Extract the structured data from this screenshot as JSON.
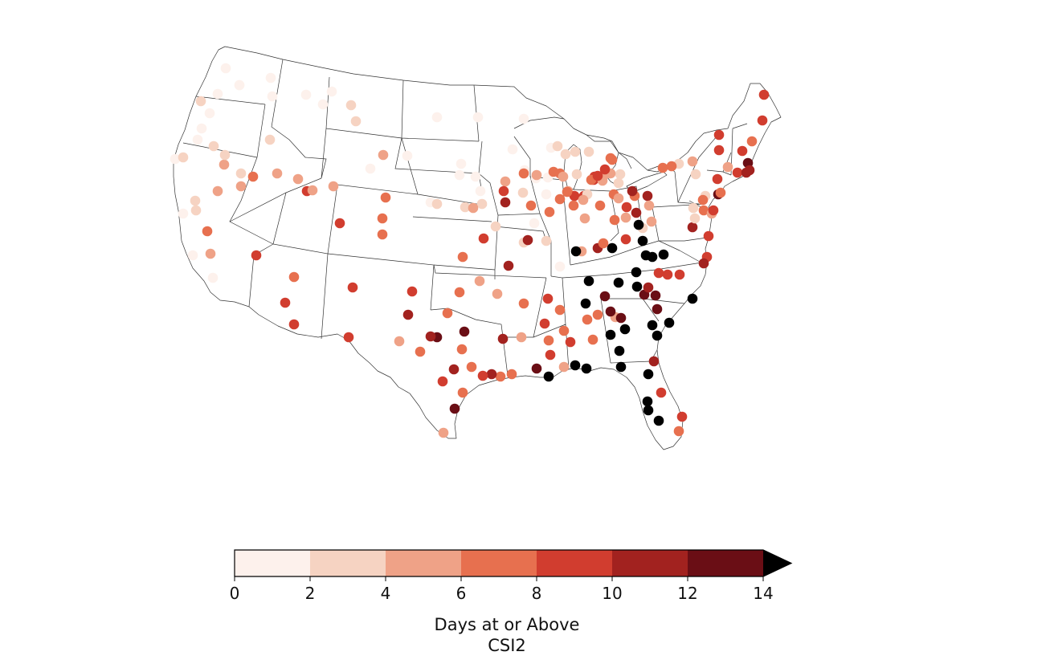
{
  "colorbar": {
    "label_line1": "Days at or Above",
    "label_line2": "CSI2",
    "ticks": [
      "0",
      "2",
      "4",
      "6",
      "8",
      "10",
      "12",
      "14"
    ],
    "bins": [
      {
        "min": 0,
        "max": 2,
        "color": "#fdf1ec"
      },
      {
        "min": 2,
        "max": 4,
        "color": "#f6d3c2"
      },
      {
        "min": 4,
        "max": 6,
        "color": "#efa287"
      },
      {
        "min": 6,
        "max": 8,
        "color": "#e7704f"
      },
      {
        "min": 8,
        "max": 10,
        "color": "#d13d2f"
      },
      {
        "min": 10,
        "max": 12,
        "color": "#a2221f"
      },
      {
        "min": 12,
        "max": 14,
        "color": "#6a0e15"
      }
    ],
    "over_color": "#000000"
  },
  "stations": {
    "description_of_value": "days",
    "over_bin": 7,
    "bins_per_station": [
      0,
      0,
      0,
      0,
      0,
      0,
      0,
      0,
      0,
      1,
      0,
      0,
      1,
      0,
      0,
      0,
      0,
      0,
      0,
      0,
      0,
      0,
      0,
      0,
      0,
      1,
      0,
      0,
      0,
      0,
      1,
      1,
      0,
      0,
      1,
      0,
      1,
      1,
      0,
      0,
      2,
      1,
      1,
      3,
      0,
      0,
      1,
      2,
      3,
      2,
      3,
      1,
      1,
      2,
      3,
      1,
      2,
      4,
      4,
      4,
      4,
      3,
      3,
      1,
      2,
      3,
      1,
      3,
      2,
      4,
      5,
      3,
      2,
      5,
      5,
      2,
      2,
      1,
      7,
      7,
      4,
      7,
      7,
      5,
      2,
      7,
      7,
      7,
      7,
      6,
      7,
      7,
      7,
      7,
      7,
      7,
      7,
      7,
      3,
      2,
      2,
      4,
      4,
      3,
      3,
      3,
      4,
      2,
      3,
      4,
      4,
      4,
      4,
      2,
      3,
      4,
      3,
      6,
      2,
      3,
      3,
      5,
      4,
      5,
      3,
      3,
      6,
      6,
      5,
      5,
      4,
      3,
      3,
      2,
      2,
      3,
      6,
      4,
      3,
      4,
      3,
      4,
      5,
      2,
      3,
      4,
      3,
      2,
      3,
      6,
      6,
      7,
      6,
      6,
      6,
      5,
      4,
      7,
      7,
      4,
      4,
      7,
      7,
      7,
      7,
      7,
      5,
      4,
      7,
      7,
      7,
      4,
      3,
      4,
      4,
      5,
      1,
      1,
      3,
      2,
      1,
      1,
      2,
      1,
      3,
      3,
      6,
      3,
      3,
      4,
      4,
      4,
      2,
      4,
      4,
      3,
      6,
      5,
      5,
      4,
      4,
      4,
      5,
      4,
      5,
      3,
      3,
      4,
      3,
      3,
      3,
      5,
      5,
      2,
      3,
      3,
      4,
      4,
      3,
      2,
      1,
      1,
      2,
      3,
      2,
      1,
      2,
      1,
      2,
      2,
      2,
      2,
      3,
      2,
      1,
      2,
      1,
      1,
      1,
      1,
      2,
      2,
      2,
      2,
      3,
      1,
      0,
      0,
      2,
      1,
      2,
      1,
      3,
      0
    ]
  }
}
